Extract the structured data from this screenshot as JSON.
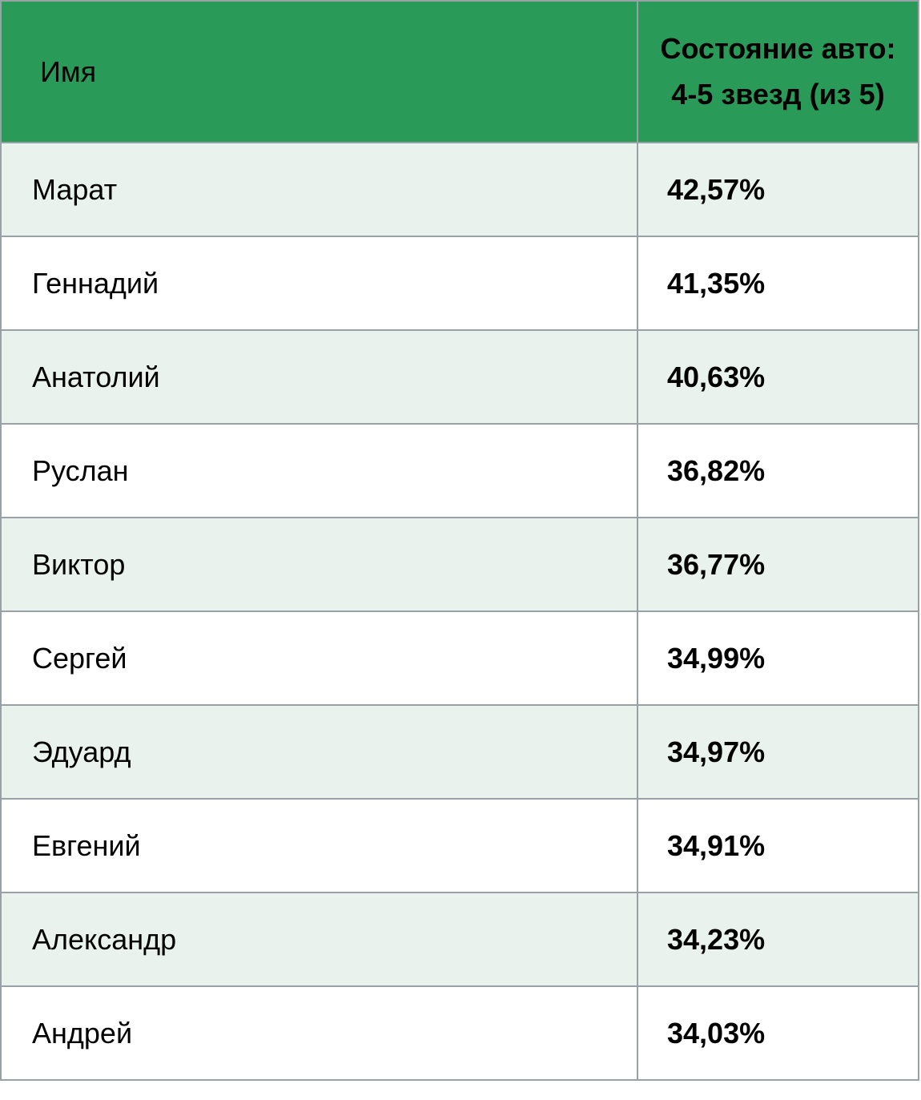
{
  "colors": {
    "header_green": "#2A9A58",
    "row_alt_light_green": "#E9F2EC",
    "row_white": "#FFFFFF",
    "border_gray": "#98A1A6",
    "header_text": "#FFFFFF",
    "body_text": "#000000"
  },
  "table": {
    "header": {
      "name_label": "Имя",
      "value_label_line1": "Состояние авто:",
      "value_label_line2": "4-5 звезд (из 5)"
    },
    "rows": [
      {
        "name": "Марат",
        "value": "42,57%"
      },
      {
        "name": "Геннадий",
        "value": "41,35%"
      },
      {
        "name": "Анатолий",
        "value": "40,63%"
      },
      {
        "name": "Руслан",
        "value": "36,82%"
      },
      {
        "name": "Виктор",
        "value": "36,77%"
      },
      {
        "name": "Сергей",
        "value": "34,99%"
      },
      {
        "name": "Эдуард",
        "value": "34,97%"
      },
      {
        "name": "Евгений",
        "value": "34,91%"
      },
      {
        "name": "Александр",
        "value": "34,23%"
      },
      {
        "name": "Андрей",
        "value": "34,03%"
      }
    ]
  },
  "chart_data": {
    "type": "table",
    "title": "",
    "columns": [
      "Имя",
      "Состояние авто: 4-5 звезд (из 5)"
    ],
    "rows": [
      [
        "Марат",
        "42,57%"
      ],
      [
        "Геннадий",
        "41,35%"
      ],
      [
        "Анатолий",
        "40,63%"
      ],
      [
        "Руслан",
        "36,82%"
      ],
      [
        "Виктор",
        "36,77%"
      ],
      [
        "Сергей",
        "34,99%"
      ],
      [
        "Эдуард",
        "34,97%"
      ],
      [
        "Евгений",
        "34,91%"
      ],
      [
        "Александр",
        "34,23%"
      ],
      [
        "Андрей",
        "34,03%"
      ]
    ],
    "values_numeric_percent": [
      42.57,
      41.35,
      40.63,
      36.82,
      36.77,
      34.99,
      34.97,
      34.91,
      34.23,
      34.03
    ],
    "layout": "two-column ranked table, zebra striping, green header"
  }
}
